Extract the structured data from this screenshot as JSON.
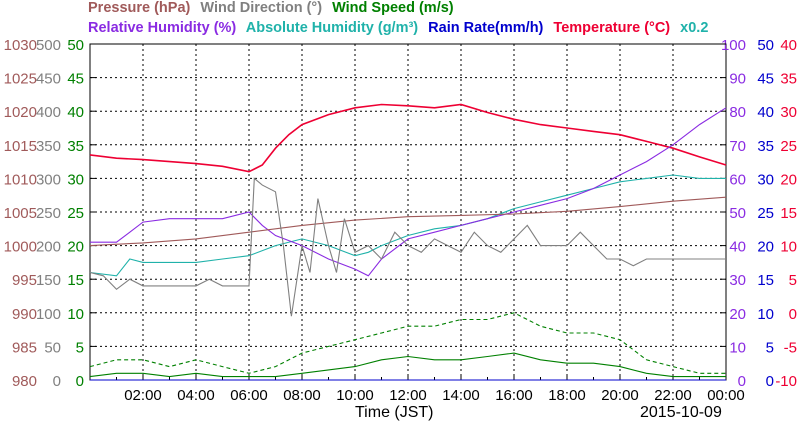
{
  "legend": {
    "pressure": {
      "label": "Pressure (hPa)",
      "color": "#a05a5a"
    },
    "wind_dir": {
      "label": "Wind Direction (°)",
      "color": "#808080"
    },
    "wind_speed": {
      "label": "Wind Speed (m/s)",
      "color": "#008000"
    },
    "rel_hum": {
      "label": "Relative Humidity (%)",
      "color": "#8a2be2"
    },
    "abs_hum": {
      "label": "Absolute Humidity (g/m³)",
      "color": "#20b2aa"
    },
    "rain": {
      "label": "Rain Rate(mm/h)",
      "color": "#0000cd"
    },
    "temp": {
      "label": "Temperature (°C)",
      "color": "#ee0033"
    },
    "abs_scale": {
      "label": "x0.2",
      "color": "#20b2aa"
    }
  },
  "xaxis": {
    "title": "Time (JST)",
    "date": "2015-10-09"
  },
  "chart_data": {
    "type": "line",
    "x_ticks": [
      "02:00",
      "04:00",
      "06:00",
      "08:00",
      "10:00",
      "12:00",
      "14:00",
      "16:00",
      "18:00",
      "20:00",
      "22:00",
      "00:00"
    ],
    "x_range_hours": [
      0,
      24
    ],
    "axes": {
      "pressure": {
        "ticks": [
          "980",
          "985",
          "990",
          "995",
          "1000",
          "1005",
          "1010",
          "1015",
          "1020",
          "1025",
          "1030"
        ],
        "range": [
          980,
          1030
        ],
        "color": "#a05a5a"
      },
      "wind_dir": {
        "ticks": [
          "0",
          "50",
          "100",
          "150",
          "200",
          "250",
          "300",
          "350",
          "400",
          "450",
          "500"
        ],
        "range": [
          0,
          500
        ],
        "color": "#808080"
      },
      "wind_speed": {
        "ticks": [
          "0",
          "5",
          "10",
          "15",
          "20",
          "25",
          "30",
          "35",
          "40",
          "45",
          "50"
        ],
        "range": [
          0,
          50
        ],
        "color": "#008000"
      },
      "rel_hum": {
        "ticks": [
          "0",
          "10",
          "20",
          "30",
          "40",
          "50",
          "60",
          "70",
          "80",
          "90",
          "100"
        ],
        "range": [
          0,
          100
        ],
        "color": "#8a2be2"
      },
      "rain": {
        "ticks": [
          "0",
          "5",
          "10",
          "15",
          "20",
          "25",
          "30",
          "35",
          "40",
          "45",
          "50"
        ],
        "range": [
          0,
          50
        ],
        "color": "#0000cd"
      },
      "temp": {
        "ticks": [
          "-10",
          "-5",
          "0",
          "5",
          "10",
          "15",
          "20",
          "25",
          "30",
          "35",
          "40"
        ],
        "range": [
          -10,
          40
        ],
        "color": "#ee0033"
      }
    },
    "grid": true,
    "series": [
      {
        "key": "temp",
        "axis": "temp",
        "color": "#ee0033",
        "x": [
          0,
          1,
          2,
          3,
          4,
          5,
          6,
          6.5,
          7,
          7.5,
          8,
          9,
          10,
          11,
          12,
          13,
          14,
          15,
          16,
          17,
          18,
          19,
          20,
          21,
          22,
          23,
          24
        ],
        "y": [
          23.5,
          23.0,
          22.8,
          22.5,
          22.2,
          21.8,
          21.0,
          22.0,
          24.5,
          26.5,
          28.0,
          29.5,
          30.5,
          31.0,
          30.8,
          30.5,
          31.0,
          29.8,
          28.8,
          28.0,
          27.5,
          27.0,
          26.5,
          25.5,
          24.5,
          23.2,
          22.0
        ]
      },
      {
        "key": "abs_hum",
        "axis": "rel_hum",
        "color": "#20b2aa",
        "x": [
          0,
          1,
          1.5,
          2,
          3,
          4,
          5,
          6,
          7,
          8,
          9,
          10,
          10.5,
          11,
          12,
          13,
          14,
          15,
          16,
          17,
          18,
          19,
          20,
          21,
          22,
          23,
          24
        ],
        "y": [
          32,
          31,
          36,
          35,
          35,
          35,
          36,
          37,
          40,
          42,
          40,
          37,
          38,
          40,
          43,
          45,
          46,
          48,
          51,
          53,
          55,
          57,
          59,
          60,
          61,
          60,
          60
        ]
      },
      {
        "key": "rel_hum",
        "axis": "rel_hum",
        "color": "#8a2be2",
        "x": [
          0,
          1,
          1.5,
          2,
          3,
          4,
          5,
          6,
          6.5,
          7,
          8,
          9,
          10,
          10.5,
          11,
          12,
          13,
          14,
          15,
          16,
          17,
          18,
          19,
          20,
          21,
          22,
          23,
          24
        ],
        "y": [
          41,
          41,
          44,
          47,
          48,
          48,
          48,
          50,
          46,
          43,
          40,
          36,
          33,
          31,
          36,
          42,
          44,
          46,
          48,
          50,
          52,
          54,
          57,
          61,
          65,
          70,
          76,
          81
        ]
      },
      {
        "key": "pressure",
        "axis": "pressure",
        "color": "#a05a5a",
        "x": [
          0,
          2,
          4,
          6,
          8,
          10,
          12,
          14,
          16,
          18,
          20,
          22,
          24
        ],
        "y": [
          1000.0,
          1000.4,
          1001.0,
          1002.0,
          1003.0,
          1003.8,
          1004.3,
          1004.5,
          1004.7,
          1005.1,
          1005.8,
          1006.6,
          1007.2
        ]
      },
      {
        "key": "wind_dir",
        "axis": "wind_dir",
        "color": "#808080",
        "x": [
          0,
          0.5,
          1,
          1.5,
          2,
          3,
          4,
          4.5,
          5,
          6,
          6.2,
          6.5,
          7,
          7.3,
          7.6,
          8,
          8.3,
          8.6,
          9,
          9.3,
          9.6,
          10,
          10.5,
          11,
          11.5,
          12,
          12.5,
          13,
          13.5,
          14,
          14.5,
          15,
          15.5,
          16,
          16.5,
          17,
          17.5,
          18,
          18.5,
          19,
          19.5,
          20,
          20.5,
          21,
          22,
          23,
          24
        ],
        "y": [
          160,
          155,
          135,
          150,
          140,
          140,
          140,
          150,
          140,
          140,
          300,
          290,
          280,
          200,
          95,
          200,
          160,
          270,
          200,
          160,
          240,
          190,
          200,
          180,
          220,
          200,
          190,
          210,
          200,
          190,
          220,
          200,
          190,
          210,
          230,
          200,
          200,
          200,
          220,
          200,
          180,
          180,
          170,
          180,
          180,
          180,
          180
        ]
      },
      {
        "key": "wind_speed_max",
        "axis": "wind_speed",
        "color": "#008000",
        "dashed": true,
        "x": [
          0,
          1,
          2,
          3,
          4,
          5,
          6,
          7,
          8,
          9,
          10,
          11,
          12,
          13,
          14,
          15,
          16,
          17,
          18,
          19,
          20,
          21,
          22,
          23,
          24
        ],
        "y": [
          2,
          3,
          3,
          2,
          3,
          2,
          1,
          2,
          4,
          5,
          6,
          7,
          8,
          8,
          9,
          9,
          10,
          8,
          7,
          7,
          6,
          3,
          2,
          1,
          1
        ]
      },
      {
        "key": "wind_speed_avg",
        "axis": "wind_speed",
        "color": "#008000",
        "x": [
          0,
          1,
          2,
          3,
          4,
          5,
          6,
          7,
          8,
          9,
          10,
          11,
          12,
          13,
          14,
          15,
          16,
          17,
          18,
          19,
          20,
          21,
          22,
          23,
          24
        ],
        "y": [
          0.5,
          1,
          1,
          0.5,
          1,
          0.5,
          0.5,
          0.5,
          1,
          1.5,
          2,
          3,
          3.5,
          3,
          3,
          3.5,
          4,
          3,
          2.5,
          2.5,
          2,
          1,
          0.5,
          0.5,
          0.5
        ]
      },
      {
        "key": "rain",
        "axis": "rain",
        "color": "#0000cd",
        "x": [
          0,
          24
        ],
        "y": [
          0,
          0
        ]
      }
    ]
  }
}
